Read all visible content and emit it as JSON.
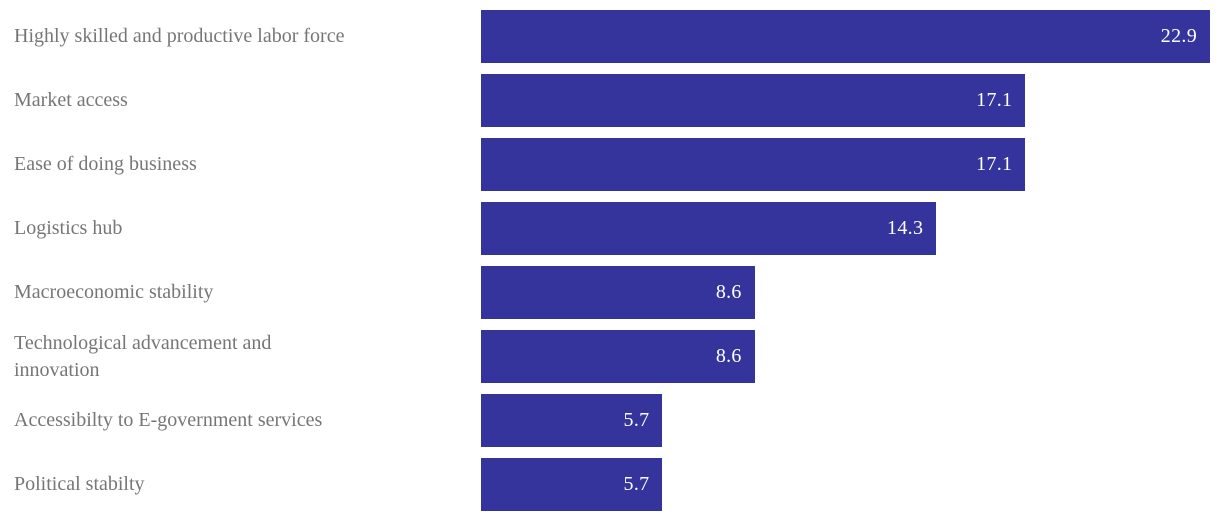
{
  "chart_data": {
    "type": "bar",
    "orientation": "horizontal",
    "title": "",
    "xlabel": "",
    "ylabel": "",
    "grid": false,
    "axes_hidden": true,
    "value_labels_position": "inside-end",
    "xlim": [
      0,
      22.9
    ],
    "categories": [
      "Highly skilled and productive labor force",
      "Market access",
      "Ease of doing business",
      "Logistics hub",
      "Macroeconomic stability",
      "Technological advancement and\ninnovation",
      "Accessibilty to E-government services",
      "Political stabilty"
    ],
    "values": [
      22.9,
      17.1,
      17.1,
      14.3,
      8.6,
      8.6,
      5.7,
      5.7
    ],
    "value_labels": [
      "22.9",
      "17.1",
      "17.1",
      "14.3",
      "8.6",
      "8.6",
      "5.7",
      "5.7"
    ],
    "bar_color": "#34349C",
    "category_label_color": "#767676",
    "value_label_color": "#FFFFFF",
    "background_color": "#FFFFFF"
  }
}
